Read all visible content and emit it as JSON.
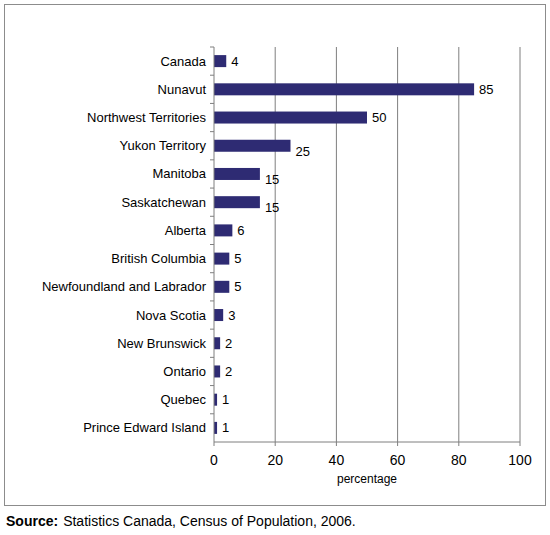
{
  "chart_data": {
    "type": "bar",
    "orientation": "horizontal",
    "categories": [
      "Canada",
      "Nunavut",
      "Northwest Territories",
      "Yukon Territory",
      "Manitoba",
      "Saskatchewan",
      "Alberta",
      "British Columbia",
      "Newfoundland and Labrador",
      "Nova Scotia",
      "New Brunswick",
      "Ontario",
      "Quebec",
      "Prince Edward Island"
    ],
    "values": [
      4,
      85,
      50,
      25,
      15,
      15,
      6,
      5,
      5,
      3,
      2,
      2,
      1,
      1
    ],
    "color": "#2e2b73",
    "xlim": [
      0,
      100
    ],
    "xticks": [
      0,
      20,
      40,
      60,
      80,
      100
    ],
    "x_label": "percentage",
    "grid": true,
    "data_labels": true,
    "source_label": "Source:",
    "source": "Statistics Canada, Census of Population, 2006."
  }
}
